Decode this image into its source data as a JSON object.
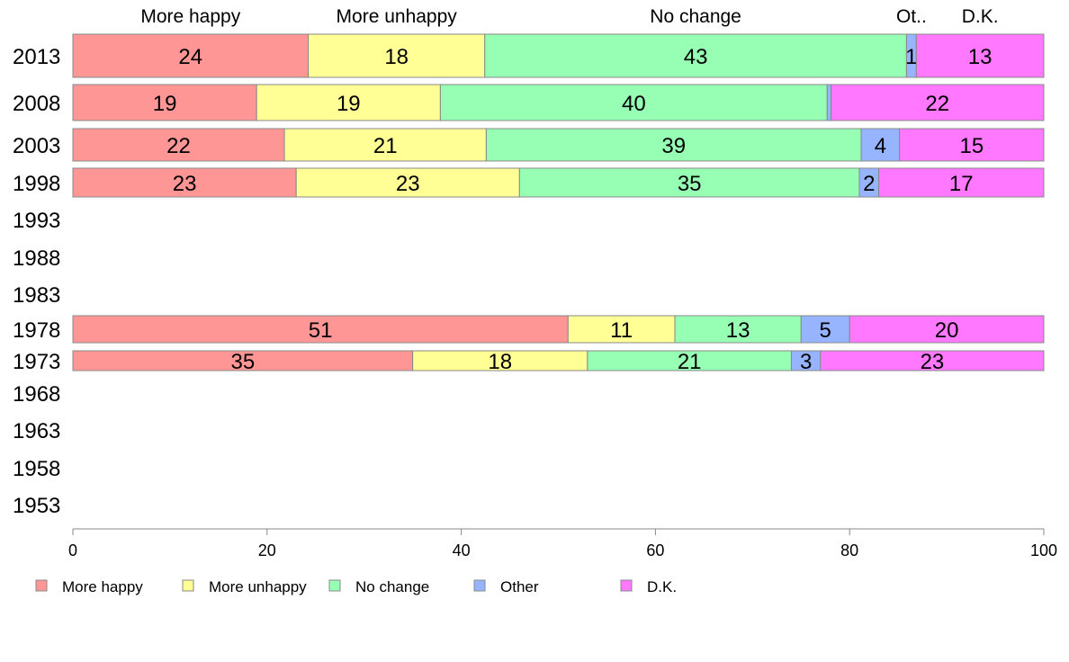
{
  "chart_data": {
    "type": "bar",
    "orientation": "horizontal",
    "stacked": true,
    "categories": [
      "2013",
      "2008",
      "2003",
      "1998",
      "1993",
      "1988",
      "1983",
      "1978",
      "1973",
      "1968",
      "1963",
      "1958",
      "1953"
    ],
    "series": [
      {
        "name": "More happy",
        "color": "#ff9696",
        "values": [
          24,
          19,
          22,
          23,
          null,
          null,
          null,
          51,
          35,
          null,
          null,
          null,
          null
        ]
      },
      {
        "name": "More unhappy",
        "color": "#ffff96",
        "values": [
          18,
          19,
          21,
          23,
          null,
          null,
          null,
          11,
          18,
          null,
          null,
          null,
          null
        ]
      },
      {
        "name": "No change",
        "color": "#96ffb4",
        "values": [
          43,
          40,
          39,
          35,
          null,
          null,
          null,
          13,
          21,
          null,
          null,
          null,
          null
        ]
      },
      {
        "name": "Other",
        "color": "#96b4ff",
        "values": [
          1,
          0.4,
          4,
          2,
          null,
          null,
          null,
          5,
          3,
          null,
          null,
          null,
          null
        ]
      },
      {
        "name": "D.K.",
        "color": "#ff78ff",
        "values": [
          13,
          22,
          15,
          17,
          null,
          null,
          null,
          20,
          23,
          null,
          null,
          null,
          null
        ]
      }
    ],
    "data_labels": [
      [
        "24",
        "18",
        "43",
        "1",
        "13"
      ],
      [
        "19",
        "19",
        "40",
        "",
        "22"
      ],
      [
        "22",
        "21",
        "39",
        "4",
        "15"
      ],
      [
        "23",
        "23",
        "35",
        "2",
        "17"
      ],
      [],
      [],
      [],
      [
        "51",
        "11",
        "13",
        "5",
        "20"
      ],
      [
        "35",
        "18",
        "21",
        "3",
        "23"
      ],
      [],
      [],
      [],
      []
    ],
    "top_labels": [
      "More happy",
      "More unhappy",
      "No change",
      "Ot..",
      "D.K."
    ],
    "xlim": [
      0,
      100
    ],
    "xticks": [
      0,
      20,
      40,
      60,
      80,
      100
    ],
    "grid": false,
    "legend_position": "bottom"
  }
}
